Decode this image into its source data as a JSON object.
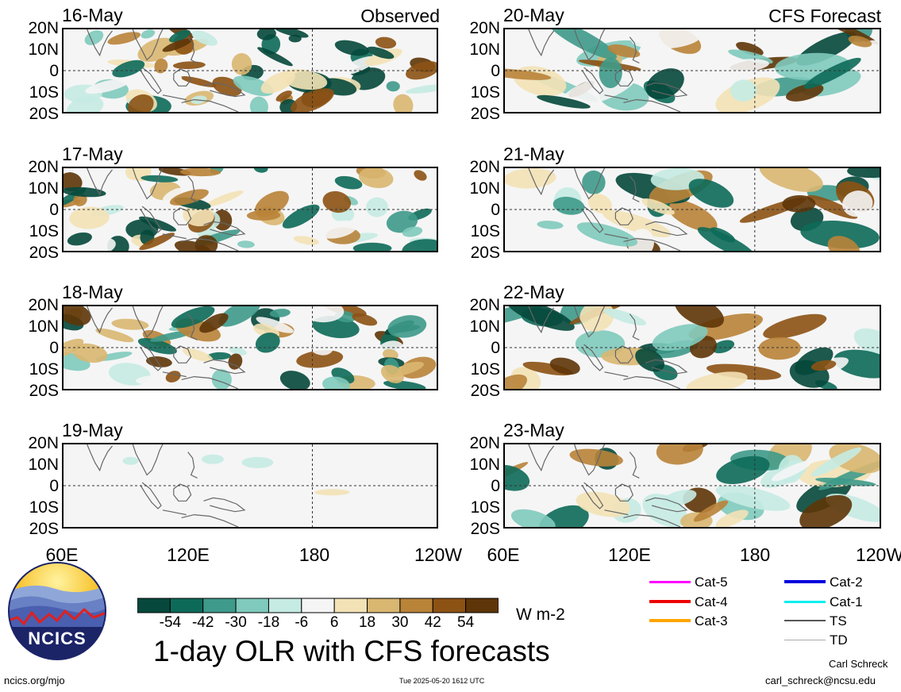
{
  "header": {
    "left_tag": "Observed",
    "right_tag": "CFS Forecast"
  },
  "panels_left": [
    {
      "date": "16-May"
    },
    {
      "date": "17-May"
    },
    {
      "date": "18-May"
    },
    {
      "date": "19-May"
    }
  ],
  "panels_right": [
    {
      "date": "20-May"
    },
    {
      "date": "21-May"
    },
    {
      "date": "22-May"
    },
    {
      "date": "23-May"
    }
  ],
  "lat_labels": [
    "20N",
    "10N",
    "0",
    "10S",
    "20S"
  ],
  "lon_labels": [
    "60E",
    "120E",
    "180",
    "120W"
  ],
  "colorbar": {
    "ticks": [
      "-54",
      "-42",
      "-30",
      "-18",
      "-6",
      "6",
      "18",
      "30",
      "42",
      "54"
    ],
    "colors": [
      "#06483b",
      "#0d6a59",
      "#3e9a8a",
      "#7fcabd",
      "#c5ebe3",
      "#f5f5f5",
      "#f3e2b6",
      "#d9b771",
      "#b98338",
      "#8c5214",
      "#5e3508"
    ],
    "units": "W m-2"
  },
  "legend": [
    {
      "label": "Cat-5",
      "color": "#ff00ff"
    },
    {
      "label": "Cat-4",
      "color": "#ee0000"
    },
    {
      "label": "Cat-3",
      "color": "#ffa500"
    },
    {
      "label": "Cat-2",
      "color": "#0000dd"
    },
    {
      "label": "Cat-1",
      "color": "#00eeee"
    },
    {
      "label": "TS",
      "color": "#555555"
    },
    {
      "label": "TD",
      "color": "#aaaaaa"
    }
  ],
  "title": "1-day OLR with CFS forecasts",
  "logo_text": "NCICS",
  "footer": {
    "url": "ncics.org/mjo",
    "timestamp": "Tue 2025-05-20 1612 UTC",
    "author": "Carl Schreck",
    "email": "carl_schreck@ncsu.edu"
  }
}
